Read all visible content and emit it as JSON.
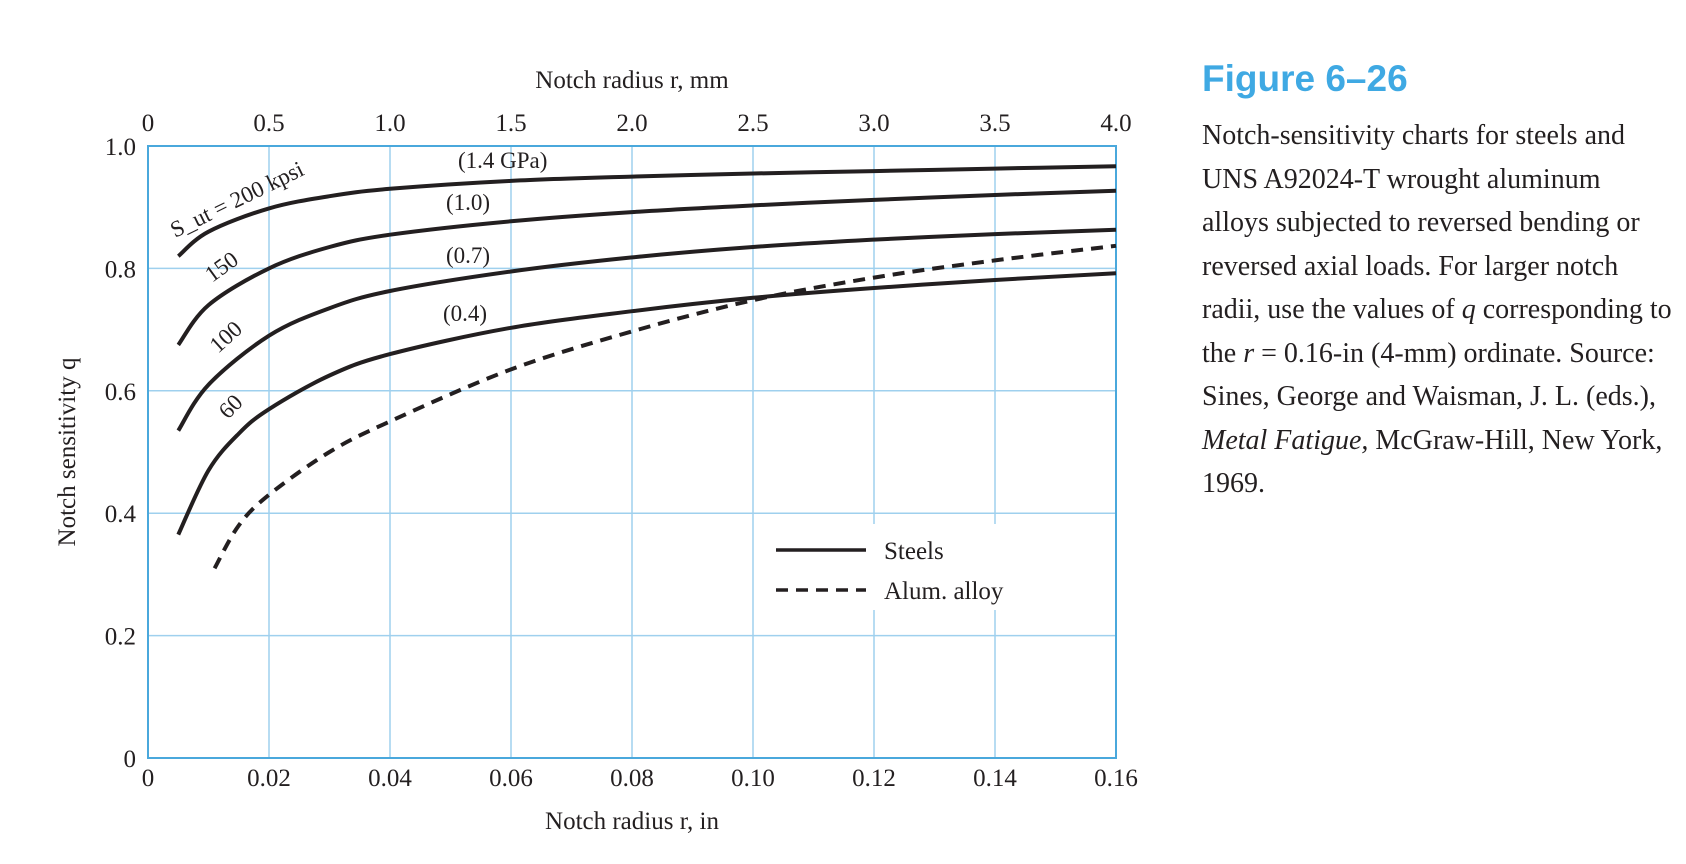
{
  "figure": {
    "label": "Figure 6–26",
    "caption_parts": [
      {
        "text": "Notch-sensitivity charts for steels and UNS A92024-T wrought aluminum alloys subjected to reversed bending or reversed axial loads. For larger notch radii, use the values of ",
        "italic": false
      },
      {
        "text": "q",
        "italic": true
      },
      {
        "text": " corresponding to the ",
        "italic": false
      },
      {
        "text": "r",
        "italic": true
      },
      {
        "text": " = 0.16-in (4-mm) ordinate. Source: Sines, George and Waisman, J. L. (eds.), ",
        "italic": false
      },
      {
        "text": "Metal Fatigue,",
        "italic": true
      },
      {
        "text": " McGraw-Hill, New York, 1969.",
        "italic": false
      }
    ]
  },
  "colors": {
    "grid": "#9fd0ee",
    "frame": "#4aa8dc",
    "curve": "#231f20",
    "title": "#3fa9e3"
  },
  "chart_data": {
    "type": "line",
    "xlabel": "Notch radius r, in",
    "x2label": "Notch radius r, mm",
    "ylabel": "Notch sensitivity q",
    "xlim": [
      0,
      0.16
    ],
    "x2lim": [
      0,
      4.0
    ],
    "ylim": [
      0,
      1.0
    ],
    "grid": true,
    "x_ticks": [
      "0",
      "0.02",
      "0.04",
      "0.06",
      "0.08",
      "0.10",
      "0.12",
      "0.14",
      "0.16"
    ],
    "x2_ticks": [
      "0",
      "0.5",
      "1.0",
      "1.5",
      "2.0",
      "2.5",
      "3.0",
      "3.5",
      "4.0"
    ],
    "y_ticks": [
      "0",
      "0.2",
      "0.4",
      "0.6",
      "0.8",
      "1.0"
    ],
    "legend": {
      "position": "lower-right",
      "entries": [
        {
          "label": "Steels",
          "style": "solid"
        },
        {
          "label": "Alum. alloy",
          "style": "dashed"
        }
      ]
    },
    "series": [
      {
        "label": "S_ut = 200 kpsi",
        "label_gpa": "(1.4 GPa)",
        "style": "solid",
        "points": [
          [
            0.005,
            0.82
          ],
          [
            0.01,
            0.86
          ],
          [
            0.02,
            0.898
          ],
          [
            0.03,
            0.918
          ],
          [
            0.04,
            0.93
          ],
          [
            0.06,
            0.943
          ],
          [
            0.08,
            0.95
          ],
          [
            0.1,
            0.955
          ],
          [
            0.12,
            0.959
          ],
          [
            0.14,
            0.963
          ],
          [
            0.16,
            0.967
          ]
        ]
      },
      {
        "label": "150",
        "label_gpa": "(1.0)",
        "style": "solid",
        "points": [
          [
            0.005,
            0.675
          ],
          [
            0.01,
            0.74
          ],
          [
            0.02,
            0.8
          ],
          [
            0.03,
            0.835
          ],
          [
            0.04,
            0.855
          ],
          [
            0.06,
            0.877
          ],
          [
            0.08,
            0.892
          ],
          [
            0.1,
            0.903
          ],
          [
            0.12,
            0.912
          ],
          [
            0.14,
            0.92
          ],
          [
            0.16,
            0.927
          ]
        ]
      },
      {
        "label": "100",
        "label_gpa": "(0.7)",
        "style": "solid",
        "points": [
          [
            0.005,
            0.535
          ],
          [
            0.01,
            0.61
          ],
          [
            0.02,
            0.69
          ],
          [
            0.03,
            0.735
          ],
          [
            0.04,
            0.763
          ],
          [
            0.06,
            0.795
          ],
          [
            0.08,
            0.818
          ],
          [
            0.1,
            0.835
          ],
          [
            0.12,
            0.847
          ],
          [
            0.14,
            0.856
          ],
          [
            0.16,
            0.863
          ]
        ]
      },
      {
        "label": "60",
        "label_gpa": "(0.4)",
        "style": "solid",
        "points": [
          [
            0.005,
            0.365
          ],
          [
            0.01,
            0.47
          ],
          [
            0.015,
            0.53
          ],
          [
            0.02,
            0.57
          ],
          [
            0.03,
            0.625
          ],
          [
            0.04,
            0.66
          ],
          [
            0.06,
            0.703
          ],
          [
            0.08,
            0.73
          ],
          [
            0.1,
            0.752
          ],
          [
            0.12,
            0.768
          ],
          [
            0.14,
            0.781
          ],
          [
            0.16,
            0.792
          ]
        ]
      },
      {
        "label": "",
        "label_gpa": "",
        "style": "dashed",
        "points": [
          [
            0.011,
            0.31
          ],
          [
            0.015,
            0.38
          ],
          [
            0.02,
            0.43
          ],
          [
            0.03,
            0.5
          ],
          [
            0.04,
            0.55
          ],
          [
            0.06,
            0.635
          ],
          [
            0.08,
            0.697
          ],
          [
            0.1,
            0.748
          ],
          [
            0.12,
            0.785
          ],
          [
            0.14,
            0.813
          ],
          [
            0.16,
            0.837
          ]
        ]
      }
    ]
  }
}
